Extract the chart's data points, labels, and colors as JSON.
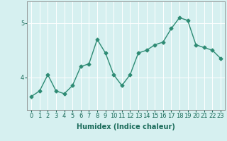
{
  "x": [
    0,
    1,
    2,
    3,
    4,
    5,
    6,
    7,
    8,
    9,
    10,
    11,
    12,
    13,
    14,
    15,
    16,
    17,
    18,
    19,
    20,
    21,
    22,
    23
  ],
  "y": [
    3.65,
    3.75,
    4.05,
    3.75,
    3.7,
    3.85,
    4.2,
    4.25,
    4.7,
    4.45,
    4.05,
    3.85,
    4.05,
    4.45,
    4.5,
    4.6,
    4.65,
    4.9,
    5.1,
    5.05,
    4.6,
    4.55,
    4.5,
    4.35
  ],
  "line_color": "#2e8b74",
  "marker": "D",
  "marker_size": 2.5,
  "line_width": 1.0,
  "bg_color": "#d6f0f0",
  "grid_color": "#ffffff",
  "xlabel": "Humidex (Indice chaleur)",
  "xlabel_fontsize": 7,
  "yticks": [
    4,
    5
  ],
  "ylim": [
    3.4,
    5.4
  ],
  "xlim": [
    -0.5,
    23.5
  ],
  "xtick_labels": [
    "0",
    "1",
    "2",
    "3",
    "4",
    "5",
    "6",
    "7",
    "8",
    "9",
    "10",
    "11",
    "12",
    "13",
    "14",
    "15",
    "16",
    "17",
    "18",
    "19",
    "20",
    "21",
    "22",
    "23"
  ],
  "tick_fontsize": 6,
  "grid_linewidth": 0.7
}
